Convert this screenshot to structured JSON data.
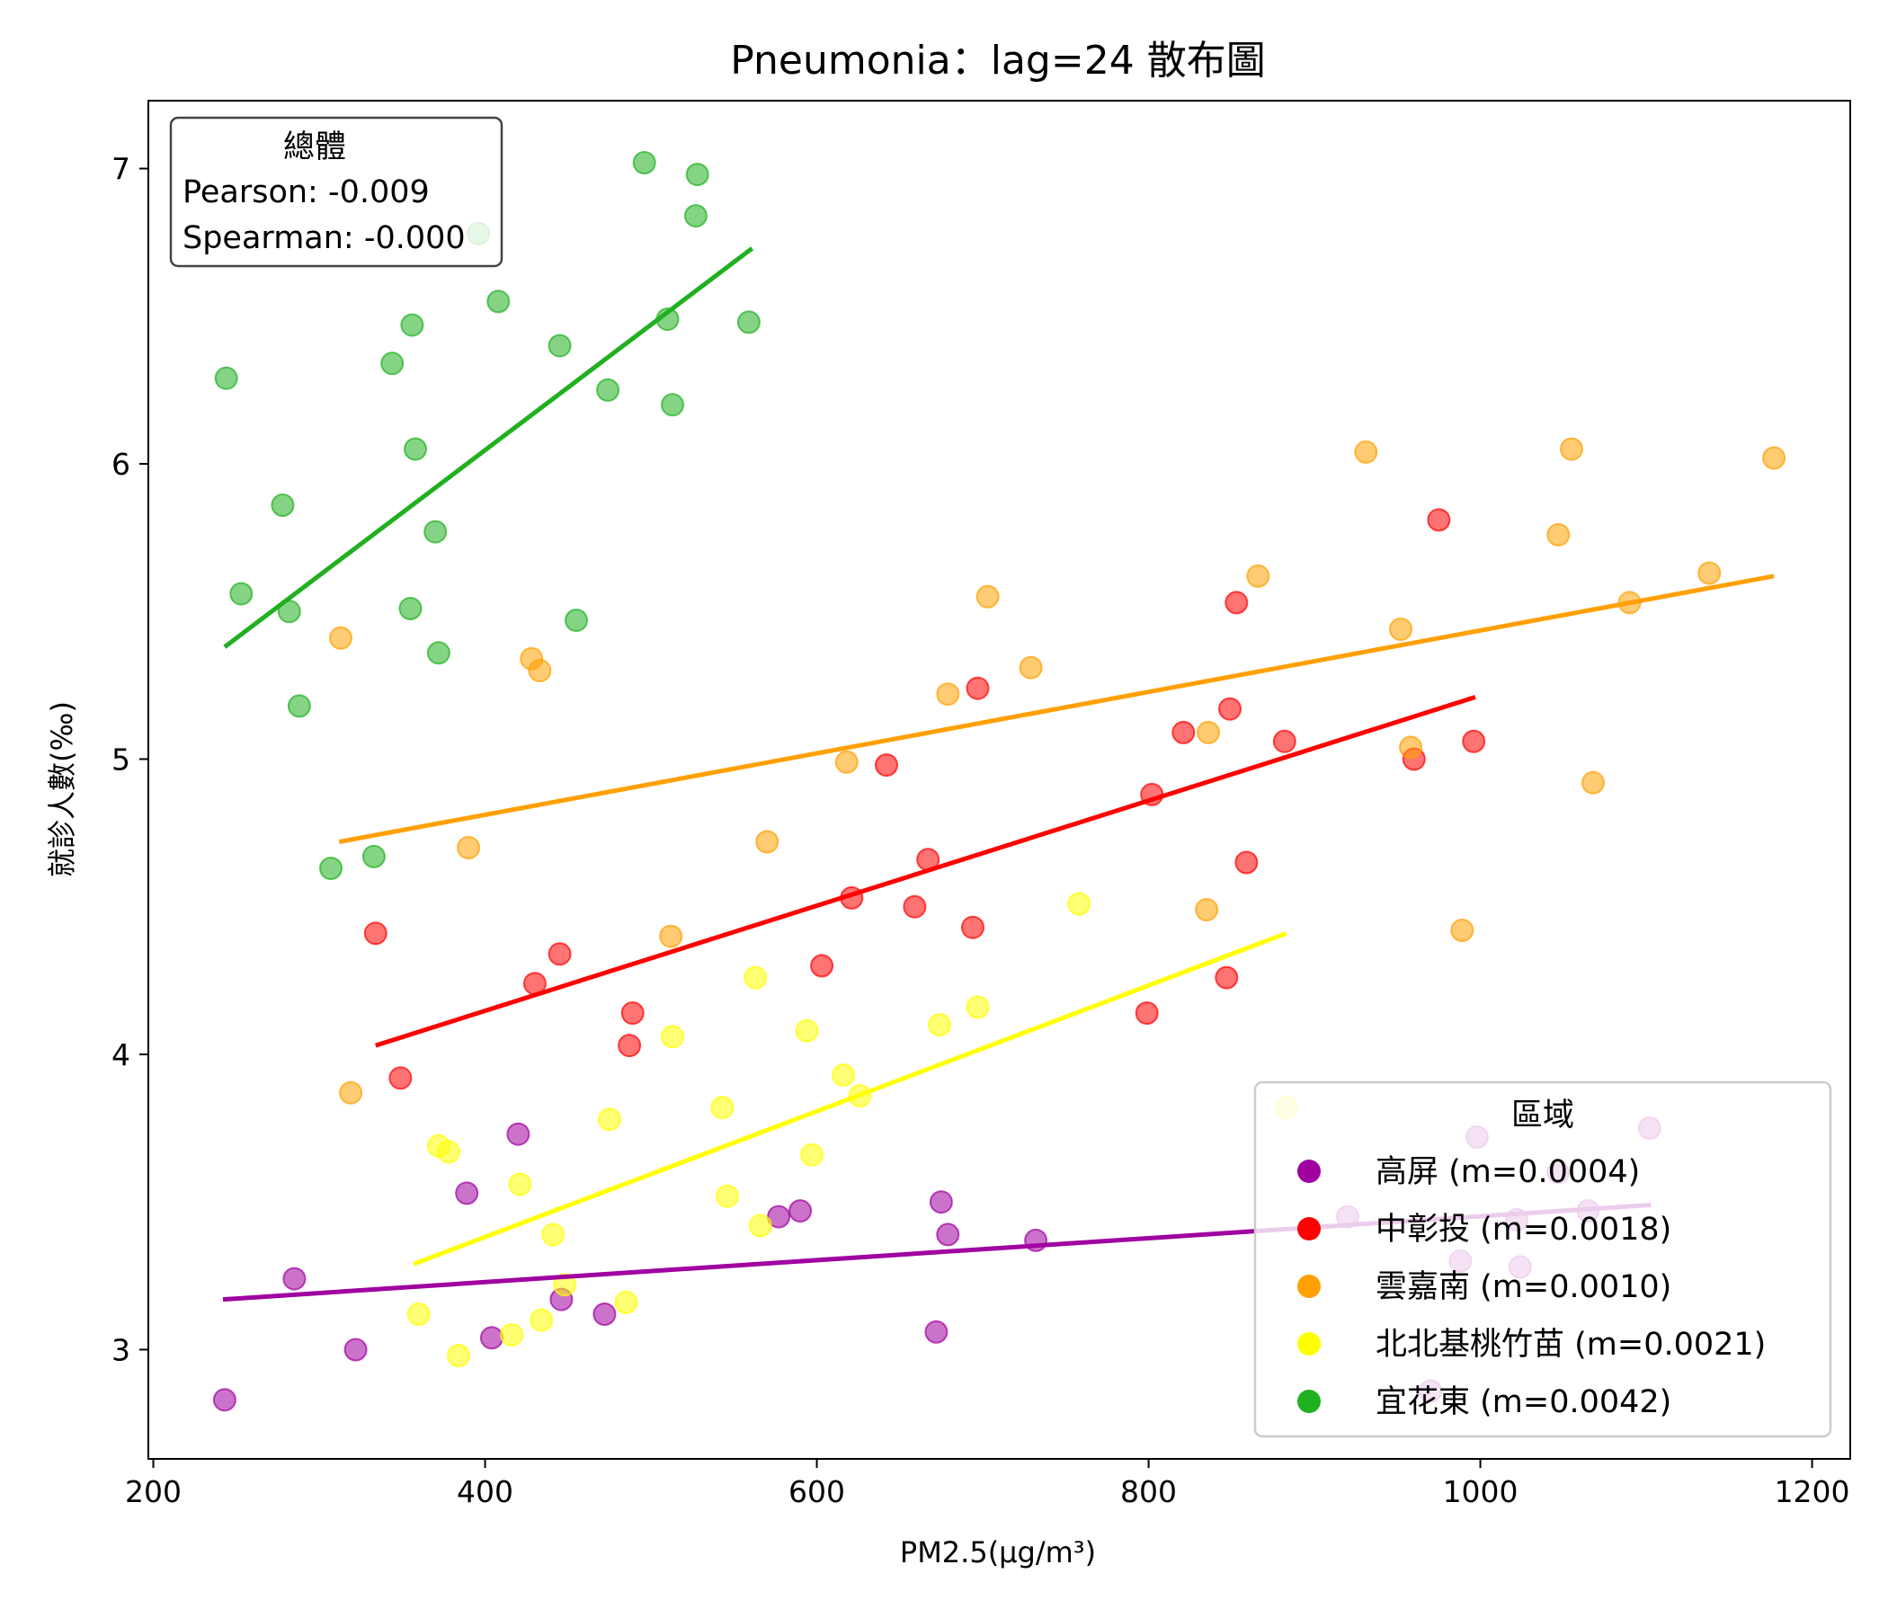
{
  "chart_data": {
    "type": "scatter",
    "title": "Pneumonia：lag=24 散布圖",
    "xlabel": "PM2.5(μg/m³)",
    "ylabel": "就診人數(‰)",
    "xlim": [
      197,
      1223
    ],
    "ylim": [
      2.63,
      7.23
    ],
    "xticks": [
      200,
      400,
      600,
      800,
      1000,
      1200
    ],
    "yticks": [
      3,
      4,
      5,
      6,
      7
    ],
    "grid": false,
    "stats_box": {
      "title": "總體",
      "pearson": "Pearson: -0.009",
      "spearman": "Spearman: -0.000"
    },
    "legend": {
      "title": "區域",
      "placement": "lower-right"
    },
    "series": [
      {
        "name": "高屏 (m=0.0004)",
        "color": "#a000a0",
        "points": [
          [
            243,
            2.83
          ],
          [
            285,
            3.24
          ],
          [
            322,
            3.0
          ],
          [
            389,
            3.53
          ],
          [
            404,
            3.04
          ],
          [
            420,
            3.73
          ],
          [
            446,
            3.17
          ],
          [
            472,
            3.12
          ],
          [
            577,
            3.45
          ],
          [
            590,
            3.47
          ],
          [
            672,
            3.06
          ],
          [
            675,
            3.5
          ],
          [
            679,
            3.39
          ],
          [
            732,
            3.37
          ],
          [
            920,
            3.45
          ],
          [
            970,
            2.86
          ],
          [
            988,
            3.3
          ],
          [
            998,
            3.72
          ],
          [
            1022,
            3.44
          ],
          [
            1024,
            3.28
          ],
          [
            1047,
            3.6
          ],
          [
            1065,
            3.47
          ],
          [
            1102,
            3.75
          ]
        ],
        "fit": [
          [
            242,
            3.17
          ],
          [
            1103,
            3.49
          ]
        ]
      },
      {
        "name": "中彰投 (m=0.0018)",
        "color": "#ff0000",
        "points": [
          [
            334,
            4.41
          ],
          [
            349,
            3.92
          ],
          [
            430,
            4.24
          ],
          [
            445,
            4.34
          ],
          [
            487,
            4.03
          ],
          [
            489,
            4.14
          ],
          [
            603,
            4.3
          ],
          [
            621,
            4.53
          ],
          [
            642,
            4.98
          ],
          [
            659,
            4.5
          ],
          [
            667,
            4.66
          ],
          [
            694,
            4.43
          ],
          [
            697,
            5.24
          ],
          [
            799,
            4.14
          ],
          [
            802,
            4.88
          ],
          [
            821,
            5.09
          ],
          [
            847,
            4.26
          ],
          [
            849,
            5.17
          ],
          [
            853,
            5.53
          ],
          [
            859,
            4.65
          ],
          [
            882,
            5.06
          ],
          [
            960,
            5.0
          ],
          [
            975,
            5.81
          ],
          [
            996,
            5.06
          ]
        ],
        "fit": [
          [
            334,
            4.03
          ],
          [
            997,
            5.21
          ]
        ]
      },
      {
        "name": "雲嘉南 (m=0.0010)",
        "color": "#ffa000",
        "points": [
          [
            313,
            5.41
          ],
          [
            319,
            3.87
          ],
          [
            390,
            4.7
          ],
          [
            428,
            5.34
          ],
          [
            433,
            5.3
          ],
          [
            512,
            4.4
          ],
          [
            570,
            4.72
          ],
          [
            618,
            4.99
          ],
          [
            679,
            5.22
          ],
          [
            703,
            5.55
          ],
          [
            729,
            5.31
          ],
          [
            835,
            4.49
          ],
          [
            836,
            5.09
          ],
          [
            866,
            5.62
          ],
          [
            931,
            6.04
          ],
          [
            952,
            5.44
          ],
          [
            958,
            5.04
          ],
          [
            989,
            4.42
          ],
          [
            1047,
            5.76
          ],
          [
            1055,
            6.05
          ],
          [
            1068,
            4.92
          ],
          [
            1090,
            5.53
          ],
          [
            1138,
            5.63
          ],
          [
            1177,
            6.02
          ]
        ],
        "fit": [
          [
            312,
            4.72
          ],
          [
            1177,
            5.62
          ]
        ]
      },
      {
        "name": "北北基桃竹苗 (m=0.0021)",
        "color": "#ffff00",
        "points": [
          [
            360,
            3.12
          ],
          [
            372,
            3.69
          ],
          [
            378,
            3.67
          ],
          [
            384,
            2.98
          ],
          [
            416,
            3.05
          ],
          [
            421,
            3.56
          ],
          [
            434,
            3.1
          ],
          [
            441,
            3.39
          ],
          [
            448,
            3.22
          ],
          [
            475,
            3.78
          ],
          [
            485,
            3.16
          ],
          [
            513,
            4.06
          ],
          [
            543,
            3.82
          ],
          [
            546,
            3.52
          ],
          [
            563,
            4.26
          ],
          [
            566,
            3.42
          ],
          [
            594,
            4.08
          ],
          [
            597,
            3.66
          ],
          [
            616,
            3.93
          ],
          [
            626,
            3.86
          ],
          [
            674,
            4.1
          ],
          [
            697,
            4.16
          ],
          [
            758,
            4.51
          ],
          [
            883,
            3.82
          ]
        ],
        "fit": [
          [
            357,
            3.29
          ],
          [
            883,
            4.41
          ]
        ]
      },
      {
        "name": "宜花東 (m=0.0042)",
        "color": "#20b020",
        "points": [
          [
            244,
            6.29
          ],
          [
            253,
            5.56
          ],
          [
            278,
            5.86
          ],
          [
            282,
            5.5
          ],
          [
            288,
            5.18
          ],
          [
            307,
            4.63
          ],
          [
            333,
            4.67
          ],
          [
            344,
            6.34
          ],
          [
            355,
            5.51
          ],
          [
            356,
            6.47
          ],
          [
            358,
            6.05
          ],
          [
            370,
            5.77
          ],
          [
            372,
            5.36
          ],
          [
            396,
            6.78
          ],
          [
            408,
            6.55
          ],
          [
            445,
            6.4
          ],
          [
            455,
            5.47
          ],
          [
            474,
            6.25
          ],
          [
            496,
            7.02
          ],
          [
            510,
            6.49
          ],
          [
            513,
            6.2
          ],
          [
            527,
            6.84
          ],
          [
            528,
            6.98
          ],
          [
            559,
            6.48
          ]
        ],
        "fit": [
          [
            243,
            5.38
          ],
          [
            561,
            6.73
          ]
        ]
      }
    ]
  }
}
